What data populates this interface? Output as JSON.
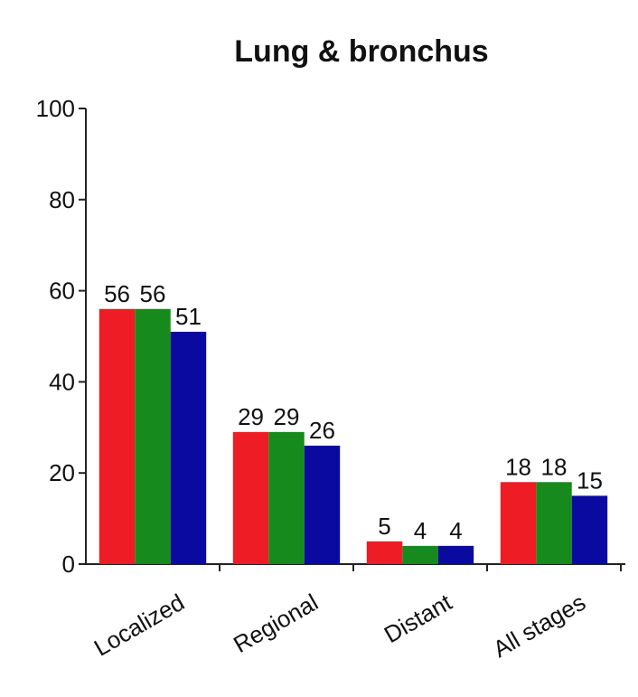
{
  "chart_data": {
    "type": "bar",
    "title": "Lung & bronchus",
    "categories": [
      "Localized",
      "Regional",
      "Distant",
      "All stages"
    ],
    "series": [
      {
        "color": "#ee1c25",
        "values": [
          56,
          29,
          5,
          18
        ]
      },
      {
        "color": "#168a1c",
        "values": [
          56,
          29,
          4,
          18
        ]
      },
      {
        "color": "#0a0aa0",
        "values": [
          51,
          26,
          4,
          15
        ]
      }
    ],
    "ylim": [
      0,
      100
    ],
    "yticks": [
      0,
      20,
      40,
      60,
      80,
      100
    ]
  }
}
